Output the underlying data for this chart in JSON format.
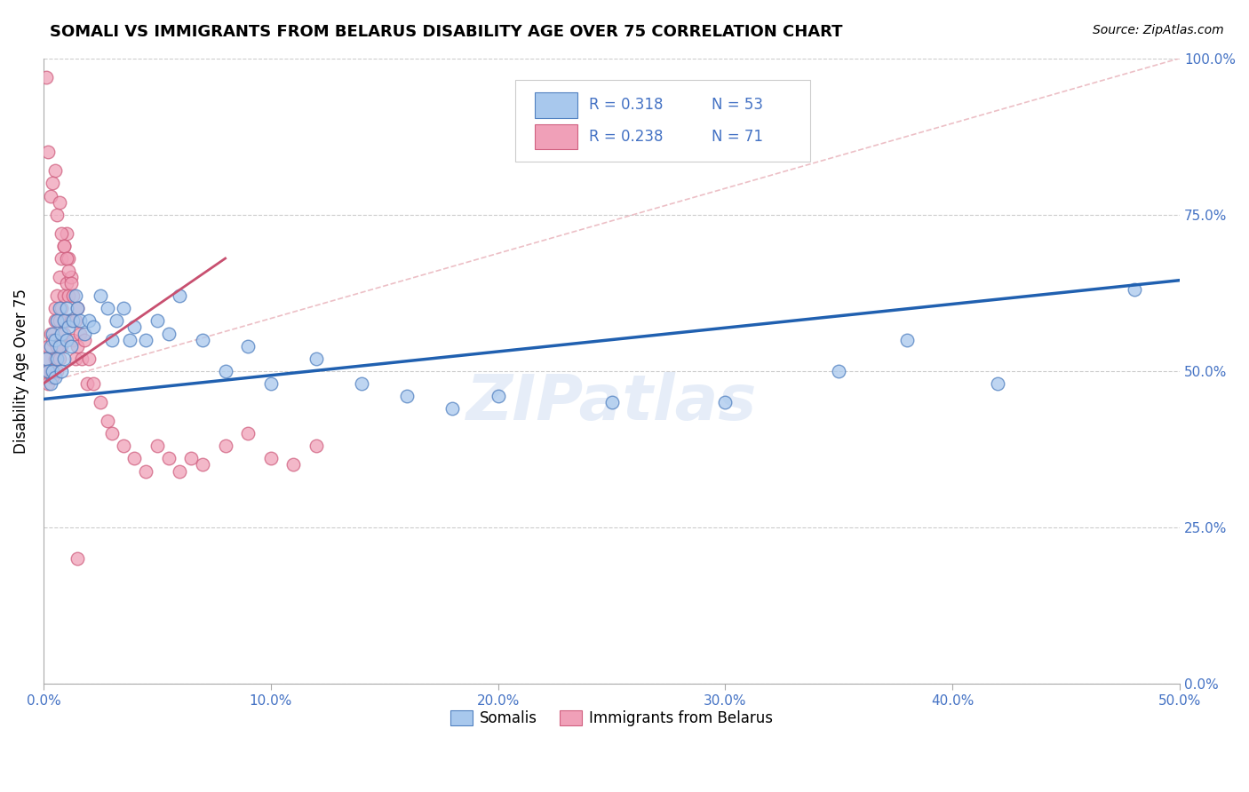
{
  "title": "SOMALI VS IMMIGRANTS FROM BELARUS DISABILITY AGE OVER 75 CORRELATION CHART",
  "source": "Source: ZipAtlas.com",
  "ylabel": "Disability Age Over 75",
  "legend_labels": [
    "Somalis",
    "Immigrants from Belarus"
  ],
  "legend_r_blue": "R = 0.318",
  "legend_n_blue": "N = 53",
  "legend_r_pink": "R = 0.238",
  "legend_n_pink": "N = 71",
  "color_blue": "#A8C8ED",
  "color_pink": "#F0A0B8",
  "color_edge_blue": "#5080C0",
  "color_edge_pink": "#D06080",
  "color_line_blue": "#2060B0",
  "color_line_pink": "#C85070",
  "color_diagonal": "#E8B0B8",
  "color_text_blue": "#4472C4",
  "color_grid": "#CCCCCC",
  "watermark": "ZIPatlas",
  "xlim": [
    0.0,
    0.5
  ],
  "ylim": [
    0.0,
    1.0
  ],
  "blue_x": [
    0.001,
    0.002,
    0.003,
    0.003,
    0.004,
    0.004,
    0.005,
    0.005,
    0.006,
    0.006,
    0.007,
    0.007,
    0.008,
    0.008,
    0.009,
    0.009,
    0.01,
    0.01,
    0.011,
    0.012,
    0.013,
    0.014,
    0.015,
    0.016,
    0.018,
    0.02,
    0.022,
    0.025,
    0.028,
    0.03,
    0.032,
    0.035,
    0.038,
    0.04,
    0.045,
    0.05,
    0.055,
    0.06,
    0.07,
    0.08,
    0.09,
    0.1,
    0.12,
    0.14,
    0.16,
    0.18,
    0.2,
    0.25,
    0.3,
    0.35,
    0.38,
    0.42,
    0.48
  ],
  "blue_y": [
    0.52,
    0.5,
    0.54,
    0.48,
    0.56,
    0.5,
    0.55,
    0.49,
    0.58,
    0.52,
    0.6,
    0.54,
    0.56,
    0.5,
    0.58,
    0.52,
    0.6,
    0.55,
    0.57,
    0.54,
    0.58,
    0.62,
    0.6,
    0.58,
    0.56,
    0.58,
    0.57,
    0.62,
    0.6,
    0.55,
    0.58,
    0.6,
    0.55,
    0.57,
    0.55,
    0.58,
    0.56,
    0.62,
    0.55,
    0.5,
    0.54,
    0.48,
    0.52,
    0.48,
    0.46,
    0.44,
    0.46,
    0.45,
    0.45,
    0.5,
    0.55,
    0.48,
    0.63
  ],
  "pink_x": [
    0.001,
    0.001,
    0.002,
    0.002,
    0.003,
    0.003,
    0.004,
    0.004,
    0.005,
    0.005,
    0.005,
    0.006,
    0.006,
    0.006,
    0.007,
    0.007,
    0.007,
    0.008,
    0.008,
    0.008,
    0.009,
    0.009,
    0.009,
    0.01,
    0.01,
    0.01,
    0.011,
    0.011,
    0.012,
    0.012,
    0.013,
    0.013,
    0.014,
    0.014,
    0.015,
    0.015,
    0.016,
    0.017,
    0.018,
    0.019,
    0.02,
    0.022,
    0.025,
    0.028,
    0.03,
    0.035,
    0.04,
    0.045,
    0.05,
    0.055,
    0.06,
    0.065,
    0.07,
    0.08,
    0.09,
    0.1,
    0.11,
    0.12,
    0.005,
    0.003,
    0.004,
    0.002,
    0.001,
    0.006,
    0.007,
    0.008,
    0.009,
    0.01,
    0.011,
    0.012,
    0.015
  ],
  "pink_y": [
    0.52,
    0.5,
    0.54,
    0.48,
    0.56,
    0.5,
    0.55,
    0.49,
    0.6,
    0.52,
    0.58,
    0.62,
    0.54,
    0.5,
    0.65,
    0.58,
    0.52,
    0.68,
    0.6,
    0.54,
    0.7,
    0.62,
    0.56,
    0.72,
    0.64,
    0.58,
    0.68,
    0.62,
    0.65,
    0.58,
    0.62,
    0.55,
    0.58,
    0.52,
    0.6,
    0.54,
    0.56,
    0.52,
    0.55,
    0.48,
    0.52,
    0.48,
    0.45,
    0.42,
    0.4,
    0.38,
    0.36,
    0.34,
    0.38,
    0.36,
    0.34,
    0.36,
    0.35,
    0.38,
    0.4,
    0.36,
    0.35,
    0.38,
    0.82,
    0.78,
    0.8,
    0.85,
    0.97,
    0.75,
    0.77,
    0.72,
    0.7,
    0.68,
    0.66,
    0.64,
    0.2
  ],
  "blue_line": {
    "x0": 0.0,
    "x1": 0.5,
    "y0": 0.455,
    "y1": 0.645
  },
  "pink_line": {
    "x0": 0.0,
    "x1": 0.08,
    "y0": 0.48,
    "y1": 0.68
  },
  "diag_line": {
    "x0": 0.0,
    "x1": 0.5,
    "y0": 0.48,
    "y1": 1.0
  }
}
